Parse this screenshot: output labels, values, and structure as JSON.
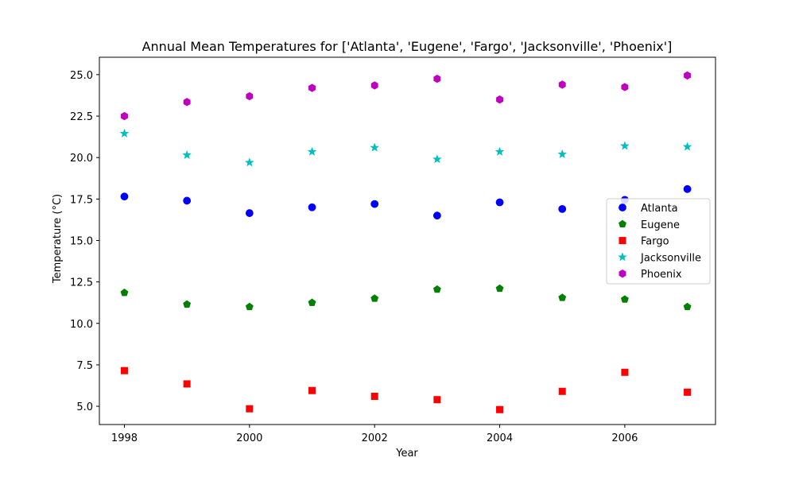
{
  "chart_data": {
    "type": "scatter",
    "title": "Annual Mean Temperatures for ['Atlanta', 'Eugene', 'Fargo', 'Jacksonville', 'Phoenix']",
    "xlabel": "Year",
    "ylabel": "Temperature (°C)",
    "x": [
      1998,
      1999,
      2000,
      2001,
      2002,
      2003,
      2004,
      2005,
      2006,
      2007
    ],
    "xlim": [
      1997.6,
      2007.45
    ],
    "ylim": [
      3.9,
      26.05
    ],
    "xticks": [
      1998,
      2000,
      2002,
      2004,
      2006
    ],
    "yticks": [
      5.0,
      7.5,
      10.0,
      12.5,
      15.0,
      17.5,
      20.0,
      22.5,
      25.0
    ],
    "grid": false,
    "legend_position": "center-right",
    "series": [
      {
        "name": "Atlanta",
        "marker": "circle",
        "color": "#0000ff",
        "values": [
          17.65,
          17.4,
          16.65,
          17.0,
          17.2,
          16.5,
          17.3,
          16.9,
          17.45,
          18.1
        ]
      },
      {
        "name": "Eugene",
        "marker": "pentagon",
        "color": "#008000",
        "values": [
          11.85,
          11.15,
          11.0,
          11.25,
          11.5,
          12.05,
          12.1,
          11.55,
          11.45,
          11.0
        ]
      },
      {
        "name": "Fargo",
        "marker": "square",
        "color": "#ff0000",
        "values": [
          7.15,
          6.35,
          4.85,
          5.95,
          5.6,
          5.4,
          4.8,
          5.9,
          7.05,
          5.85
        ]
      },
      {
        "name": "Jacksonville",
        "marker": "star",
        "color": "#00bfbf",
        "values": [
          21.45,
          20.15,
          19.7,
          20.35,
          20.6,
          19.9,
          20.35,
          20.2,
          20.7,
          20.65
        ]
      },
      {
        "name": "Phoenix",
        "marker": "hexagon",
        "color": "#bf00bf",
        "values": [
          22.5,
          23.35,
          23.7,
          24.2,
          24.35,
          24.75,
          23.5,
          24.4,
          24.25,
          24.95
        ]
      }
    ]
  }
}
